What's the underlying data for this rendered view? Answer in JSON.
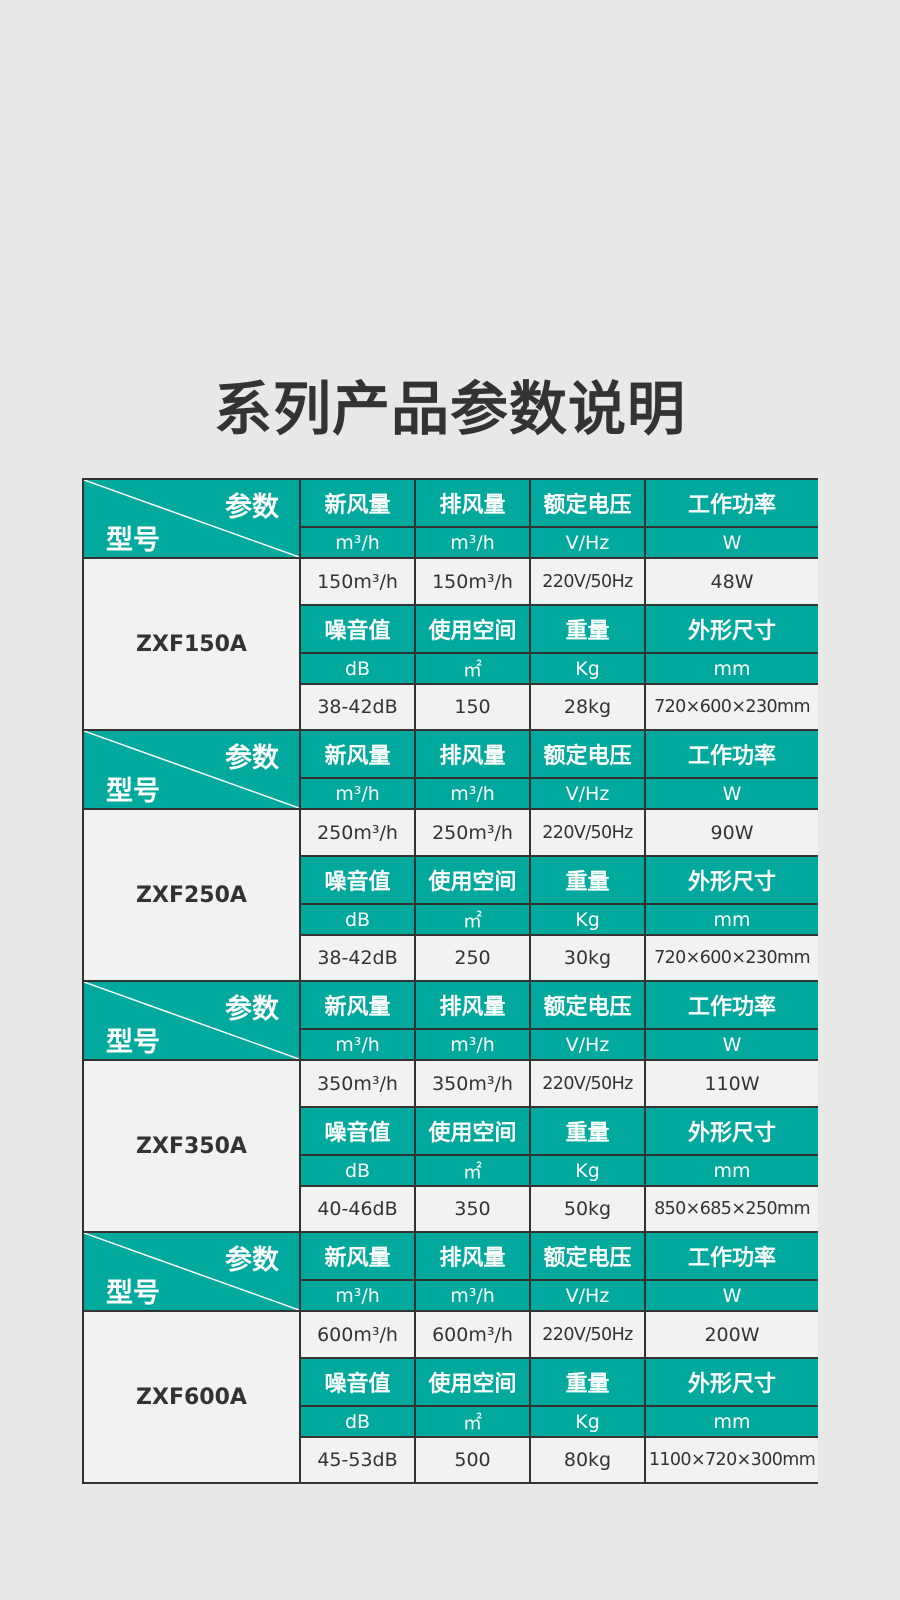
{
  "title": "系列产品参数说明",
  "colors": {
    "header": "#00a99d",
    "cell": "#f2f2f2",
    "border": "#333333",
    "background": "#e8e8e8"
  },
  "corner": {
    "param_label": "参数",
    "model_label": "型号"
  },
  "header_row_1": [
    "新风量",
    "排风量",
    "额定电压",
    "工作功率"
  ],
  "units_row_1": [
    "m³/h",
    "m³/h",
    "V/Hz",
    "W"
  ],
  "header_row_2": [
    "噪音值",
    "使用空间",
    "重量",
    "外形尺寸"
  ],
  "units_row_2": [
    "dB",
    "㎡",
    "Kg",
    "mm"
  ],
  "models": [
    {
      "name": "ZXF150A",
      "row1": [
        "150m³/h",
        "150m³/h",
        "220V/50Hz",
        "48W"
      ],
      "row2": [
        "38-42dB",
        "150",
        "28kg",
        "720×600×230mm"
      ]
    },
    {
      "name": "ZXF250A",
      "row1": [
        "250m³/h",
        "250m³/h",
        "220V/50Hz",
        "90W"
      ],
      "row2": [
        "38-42dB",
        "250",
        "30kg",
        "720×600×230mm"
      ]
    },
    {
      "name": "ZXF350A",
      "row1": [
        "350m³/h",
        "350m³/h",
        "220V/50Hz",
        "110W"
      ],
      "row2": [
        "40-46dB",
        "350",
        "50kg",
        "850×685×250mm"
      ]
    },
    {
      "name": "ZXF600A",
      "row1": [
        "600m³/h",
        "600m³/h",
        "220V/50Hz",
        "200W"
      ],
      "row2": [
        "45-53dB",
        "500",
        "80kg",
        "1100×720×300mm"
      ]
    }
  ]
}
